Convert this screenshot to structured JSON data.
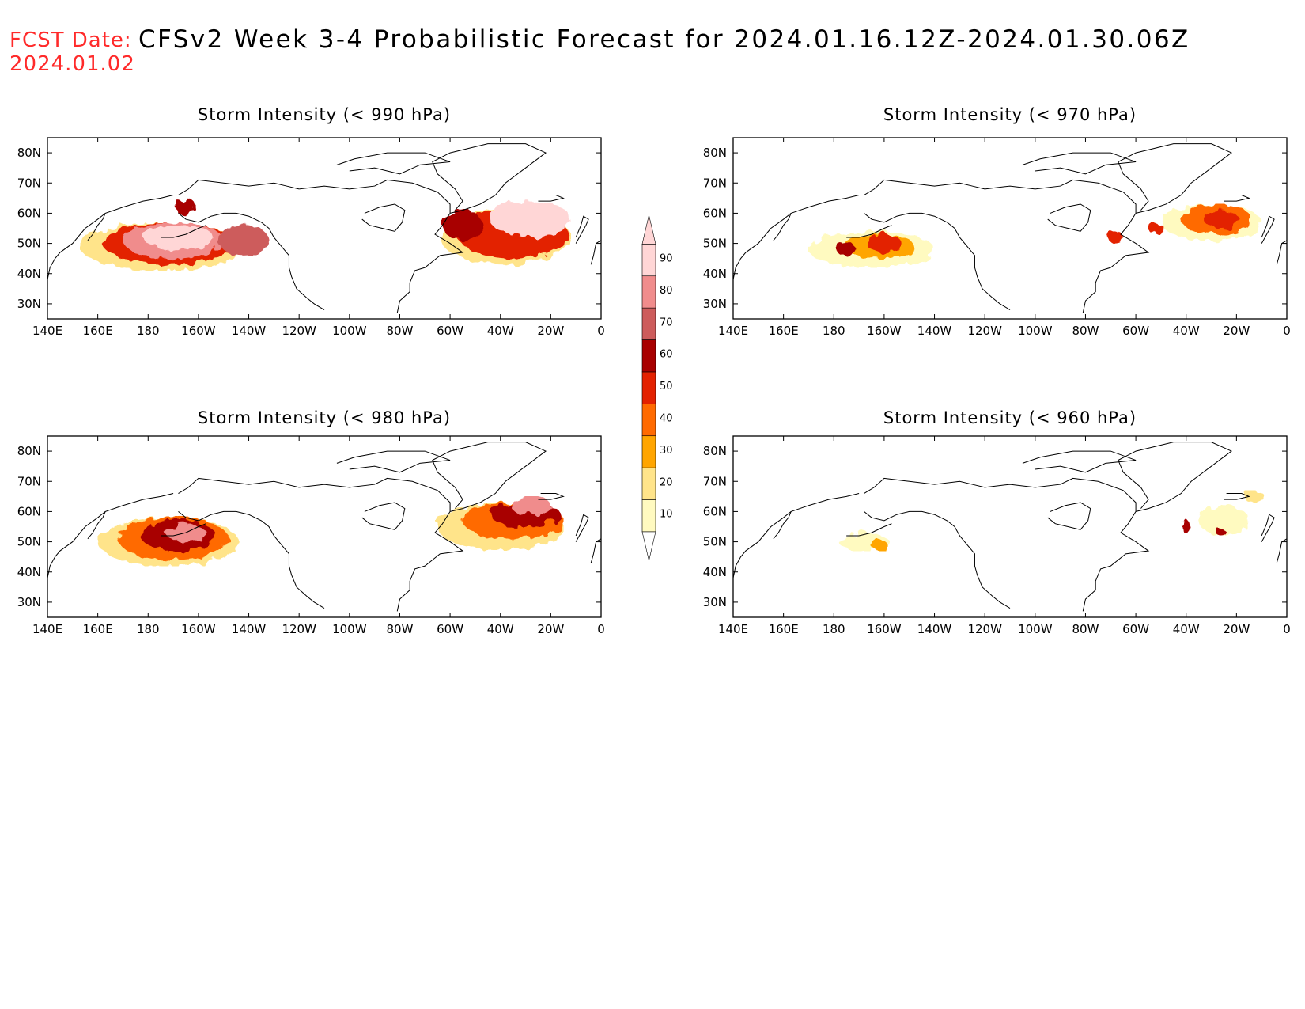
{
  "header": {
    "fcst_label": "FCST Date:",
    "fcst_date": "2024.01.02",
    "title": "CFSv2 Week 3-4 Probabilistic Forecast for 2024.01.16.12Z-2024.01.30.06Z"
  },
  "panels": [
    {
      "title": "Storm Intensity (< 990 hPa)",
      "blobs": [
        {
          "lon": -175,
          "lat": 49,
          "rx": 32,
          "ry": 8,
          "p": 25
        },
        {
          "lon": -172,
          "lat": 50,
          "rx": 26,
          "ry": 7,
          "p": 55
        },
        {
          "lon": -170,
          "lat": 51,
          "rx": 20,
          "ry": 6,
          "p": 80
        },
        {
          "lon": -168,
          "lat": 52,
          "rx": 14,
          "ry": 4,
          "p": 90
        },
        {
          "lon": -142,
          "lat": 51,
          "rx": 10,
          "ry": 5,
          "p": 75
        },
        {
          "lon": -165,
          "lat": 62,
          "rx": 4,
          "ry": 3,
          "p": 60
        },
        {
          "lon": -38,
          "lat": 52,
          "rx": 26,
          "ry": 9,
          "p": 25
        },
        {
          "lon": -35,
          "lat": 53,
          "rx": 22,
          "ry": 8,
          "p": 55
        },
        {
          "lon": -28,
          "lat": 58,
          "rx": 16,
          "ry": 6,
          "p": 90
        },
        {
          "lon": -55,
          "lat": 56,
          "rx": 8,
          "ry": 5,
          "p": 65
        }
      ]
    },
    {
      "title": "Storm Intensity (< 970 hPa)",
      "blobs": [
        {
          "lon": -165,
          "lat": 48,
          "rx": 25,
          "ry": 6,
          "p": 15
        },
        {
          "lon": -162,
          "lat": 49,
          "rx": 14,
          "ry": 4,
          "p": 35
        },
        {
          "lon": -160,
          "lat": 50,
          "rx": 7,
          "ry": 3,
          "p": 55
        },
        {
          "lon": -175,
          "lat": 48,
          "rx": 4,
          "ry": 2,
          "p": 60
        },
        {
          "lon": -30,
          "lat": 57,
          "rx": 20,
          "ry": 6,
          "p": 15
        },
        {
          "lon": -28,
          "lat": 58,
          "rx": 14,
          "ry": 5,
          "p": 40
        },
        {
          "lon": -26,
          "lat": 58,
          "rx": 7,
          "ry": 3,
          "p": 55
        },
        {
          "lon": -68,
          "lat": 52,
          "rx": 3,
          "ry": 2,
          "p": 50
        },
        {
          "lon": -52,
          "lat": 55,
          "rx": 3,
          "ry": 2,
          "p": 55
        }
      ]
    },
    {
      "title": "Storm Intensity (< 980 hPa)",
      "blobs": [
        {
          "lon": -172,
          "lat": 50,
          "rx": 28,
          "ry": 8,
          "p": 20
        },
        {
          "lon": -170,
          "lat": 51,
          "rx": 22,
          "ry": 7,
          "p": 45
        },
        {
          "lon": -168,
          "lat": 52,
          "rx": 15,
          "ry": 5,
          "p": 60
        },
        {
          "lon": -165,
          "lat": 53,
          "rx": 8,
          "ry": 3,
          "p": 85
        },
        {
          "lon": -40,
          "lat": 55,
          "rx": 25,
          "ry": 8,
          "p": 20
        },
        {
          "lon": -35,
          "lat": 57,
          "rx": 20,
          "ry": 6,
          "p": 45
        },
        {
          "lon": -30,
          "lat": 59,
          "rx": 14,
          "ry": 4,
          "p": 65
        },
        {
          "lon": -28,
          "lat": 62,
          "rx": 8,
          "ry": 3,
          "p": 85
        }
      ]
    },
    {
      "title": "Storm Intensity (< 960 hPa)",
      "blobs": [
        {
          "lon": -168,
          "lat": 50,
          "rx": 10,
          "ry": 3,
          "p": 15
        },
        {
          "lon": -162,
          "lat": 49,
          "rx": 3,
          "ry": 2,
          "p": 35
        },
        {
          "lon": -25,
          "lat": 57,
          "rx": 10,
          "ry": 5,
          "p": 15
        },
        {
          "lon": -40,
          "lat": 55,
          "rx": 2,
          "ry": 2,
          "p": 60
        },
        {
          "lon": -26,
          "lat": 53,
          "rx": 2,
          "ry": 1,
          "p": 60
        },
        {
          "lon": -13,
          "lat": 65,
          "rx": 4,
          "ry": 2,
          "p": 25
        }
      ]
    }
  ],
  "map": {
    "lon_ticks": [
      "140E",
      "160E",
      "180",
      "160W",
      "140W",
      "120W",
      "100W",
      "80W",
      "60W",
      "40W",
      "20W",
      "0"
    ],
    "lat_ticks": [
      "30N",
      "40N",
      "50N",
      "60N",
      "70N",
      "80N"
    ],
    "lon_range": [
      140,
      360
    ],
    "lat_range": [
      25,
      85
    ]
  },
  "colorbar": {
    "levels": [
      "10",
      "20",
      "30",
      "40",
      "50",
      "60",
      "70",
      "80",
      "90"
    ],
    "colors": [
      "#fffac0",
      "#ffe48a",
      "#ffa500",
      "#ff6a00",
      "#e32100",
      "#a80000",
      "#cd5c5c",
      "#f08c8c",
      "#ffd6d6"
    ]
  }
}
